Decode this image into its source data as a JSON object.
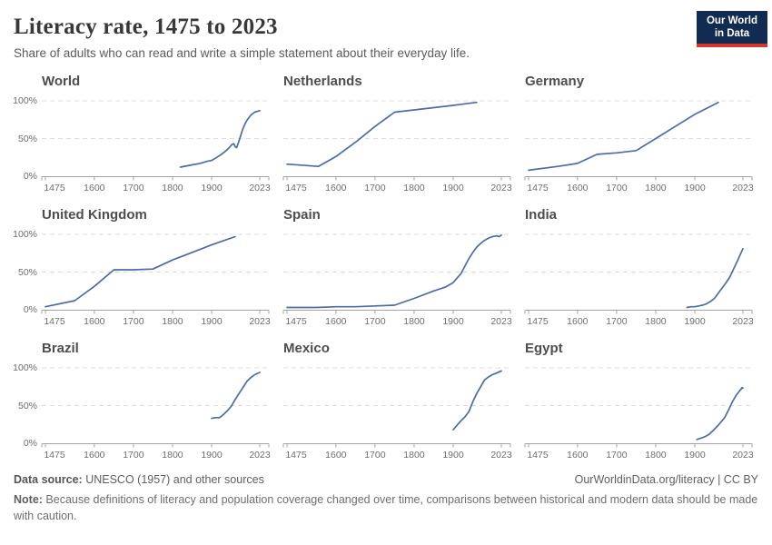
{
  "header": {
    "title": "Literacy rate, 1475 to 2023",
    "subtitle": "Share of adults who can read and write a simple statement about their everyday life.",
    "logo_line1": "Our World",
    "logo_line2": "in Data"
  },
  "chart_data": {
    "type": "line",
    "title": "Literacy rate, 1475 to 2023",
    "x_range": [
      1475,
      2023
    ],
    "y_range": [
      0,
      100
    ],
    "x_ticks": [
      1475,
      1600,
      1700,
      1800,
      1900,
      2023
    ],
    "x_tick_labels": [
      "1475",
      "1600",
      "1700",
      "1800",
      "1900",
      "2023"
    ],
    "y_ticks": [
      0,
      50,
      100
    ],
    "y_tick_labels": [
      "0%",
      "50%",
      "100%"
    ],
    "grid": "horizontal-dashed",
    "legend": "none",
    "line_color": "#4c6ca8",
    "facets": [
      {
        "title": "World",
        "y_labels": true,
        "points": [
          [
            1820,
            12
          ],
          [
            1850,
            15
          ],
          [
            1870,
            17
          ],
          [
            1890,
            20
          ],
          [
            1900,
            21
          ],
          [
            1913,
            25
          ],
          [
            1925,
            29
          ],
          [
            1935,
            33
          ],
          [
            1945,
            38
          ],
          [
            1952,
            42
          ],
          [
            1957,
            43
          ],
          [
            1960,
            39
          ],
          [
            1964,
            38
          ],
          [
            1970,
            47
          ],
          [
            1976,
            57
          ],
          [
            1980,
            63
          ],
          [
            1985,
            69
          ],
          [
            1990,
            74
          ],
          [
            2000,
            81
          ],
          [
            2010,
            85
          ],
          [
            2023,
            87
          ]
        ]
      },
      {
        "title": "Netherlands",
        "y_labels": false,
        "points": [
          [
            1475,
            16
          ],
          [
            1555,
            13
          ],
          [
            1600,
            26
          ],
          [
            1650,
            45
          ],
          [
            1700,
            66
          ],
          [
            1750,
            85
          ],
          [
            1800,
            88
          ],
          [
            1850,
            91
          ],
          [
            1900,
            94
          ],
          [
            1930,
            96
          ],
          [
            1960,
            98
          ]
        ]
      },
      {
        "title": "Germany",
        "y_labels": false,
        "points": [
          [
            1475,
            8
          ],
          [
            1550,
            13
          ],
          [
            1600,
            17
          ],
          [
            1650,
            29
          ],
          [
            1700,
            31
          ],
          [
            1750,
            34
          ],
          [
            1800,
            50
          ],
          [
            1850,
            66
          ],
          [
            1900,
            82
          ],
          [
            1960,
            98
          ]
        ]
      },
      {
        "title": "United Kingdom",
        "y_labels": true,
        "points": [
          [
            1475,
            4
          ],
          [
            1550,
            12
          ],
          [
            1600,
            31
          ],
          [
            1650,
            53
          ],
          [
            1700,
            53
          ],
          [
            1750,
            54
          ],
          [
            1800,
            66
          ],
          [
            1850,
            76
          ],
          [
            1900,
            86
          ],
          [
            1960,
            97
          ]
        ]
      },
      {
        "title": "Spain",
        "y_labels": false,
        "points": [
          [
            1475,
            3
          ],
          [
            1550,
            3
          ],
          [
            1600,
            4
          ],
          [
            1650,
            4
          ],
          [
            1700,
            5
          ],
          [
            1750,
            6
          ],
          [
            1800,
            15
          ],
          [
            1850,
            25
          ],
          [
            1880,
            30
          ],
          [
            1900,
            36
          ],
          [
            1910,
            42
          ],
          [
            1920,
            48
          ],
          [
            1930,
            58
          ],
          [
            1940,
            68
          ],
          [
            1950,
            76
          ],
          [
            1960,
            83
          ],
          [
            1970,
            88
          ],
          [
            1980,
            92
          ],
          [
            1990,
            95
          ],
          [
            2000,
            97
          ],
          [
            2010,
            98
          ],
          [
            2018,
            97
          ],
          [
            2023,
            99
          ]
        ]
      },
      {
        "title": "India",
        "y_labels": false,
        "points": [
          [
            1880,
            3
          ],
          [
            1890,
            4
          ],
          [
            1900,
            4
          ],
          [
            1910,
            5
          ],
          [
            1920,
            6
          ],
          [
            1930,
            8
          ],
          [
            1940,
            11
          ],
          [
            1950,
            15
          ],
          [
            1960,
            22
          ],
          [
            1970,
            29
          ],
          [
            1980,
            36
          ],
          [
            1990,
            44
          ],
          [
            2000,
            55
          ],
          [
            2010,
            66
          ],
          [
            2015,
            72
          ],
          [
            2023,
            81
          ]
        ]
      },
      {
        "title": "Brazil",
        "y_labels": true,
        "points": [
          [
            1900,
            33
          ],
          [
            1910,
            34
          ],
          [
            1920,
            34
          ],
          [
            1930,
            38
          ],
          [
            1940,
            43
          ],
          [
            1950,
            49
          ],
          [
            1960,
            58
          ],
          [
            1970,
            66
          ],
          [
            1980,
            74
          ],
          [
            1990,
            82
          ],
          [
            2000,
            87
          ],
          [
            2010,
            91
          ],
          [
            2023,
            94
          ]
        ]
      },
      {
        "title": "Mexico",
        "y_labels": false,
        "points": [
          [
            1900,
            18
          ],
          [
            1910,
            24
          ],
          [
            1920,
            30
          ],
          [
            1930,
            35
          ],
          [
            1940,
            42
          ],
          [
            1950,
            55
          ],
          [
            1960,
            66
          ],
          [
            1970,
            75
          ],
          [
            1980,
            84
          ],
          [
            1990,
            88
          ],
          [
            2000,
            91
          ],
          [
            2010,
            93
          ],
          [
            2023,
            96
          ]
        ]
      },
      {
        "title": "Egypt",
        "y_labels": false,
        "points": [
          [
            1905,
            5
          ],
          [
            1917,
            7
          ],
          [
            1927,
            9
          ],
          [
            1937,
            12
          ],
          [
            1947,
            17
          ],
          [
            1960,
            24
          ],
          [
            1976,
            34
          ],
          [
            1986,
            44
          ],
          [
            1996,
            55
          ],
          [
            2006,
            64
          ],
          [
            2012,
            68
          ],
          [
            2017,
            71
          ],
          [
            2021,
            74
          ],
          [
            2023,
            73
          ]
        ]
      }
    ]
  },
  "footer": {
    "source_label": "Data source:",
    "source_text": " UNESCO (1957) and other sources",
    "link": "OurWorldinData.org/literacy | CC BY",
    "note_label": "Note:",
    "note_text": " Because definitions of literacy and population coverage changed over time, comparisons between historical and modern data should be made with caution."
  },
  "colors": {
    "line": "#4c6ca8",
    "gridline": "#dcdcdc",
    "axis": "#a3a3a3",
    "tick_label": "#6e6e6e",
    "facet_title": "#4e4e4e",
    "logo_navy": "#122b52",
    "logo_red": "#d4362c"
  }
}
